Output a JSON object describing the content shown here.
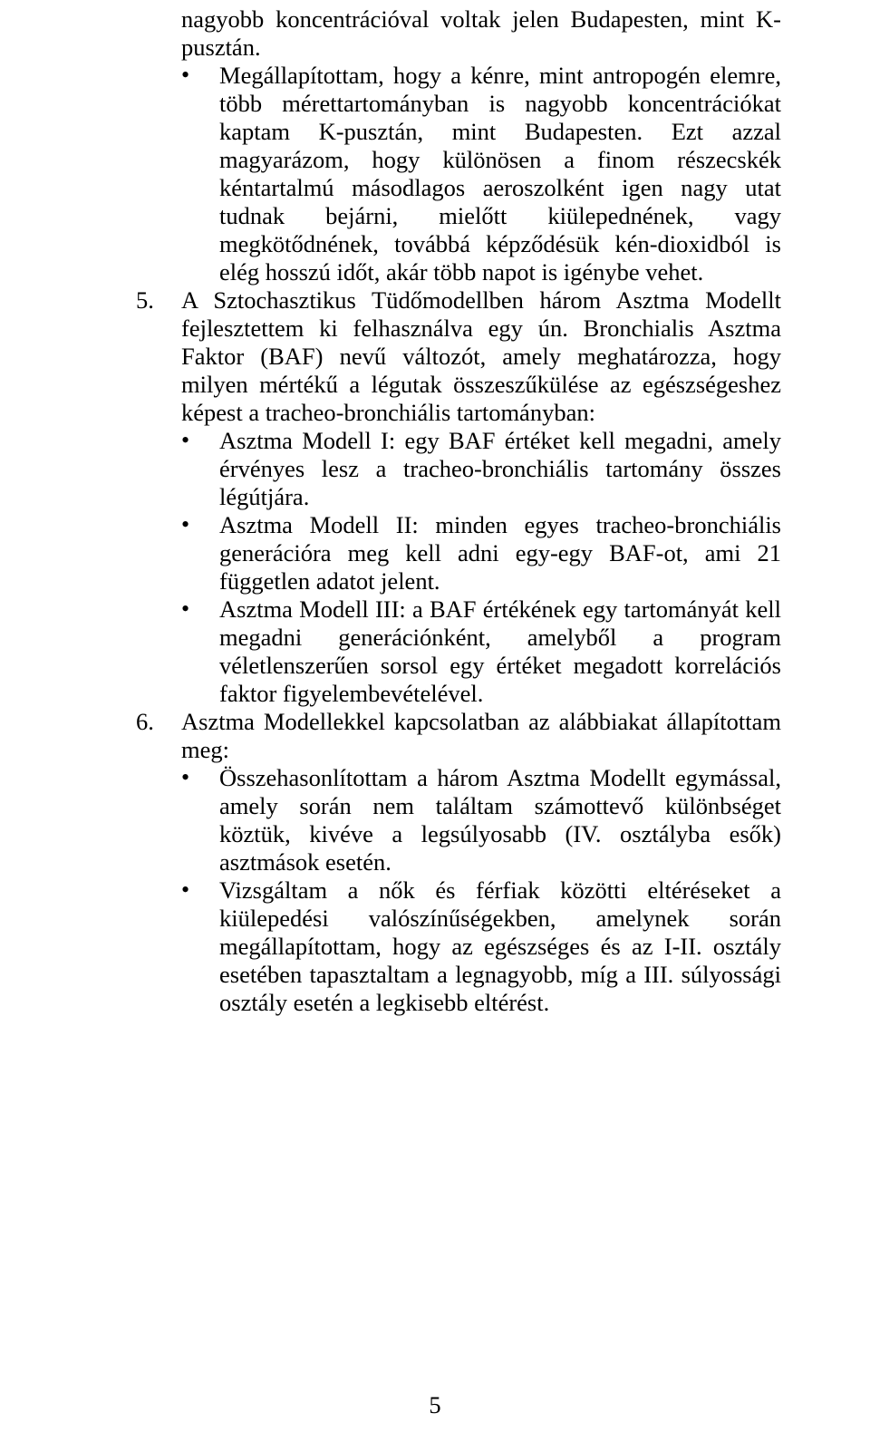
{
  "colors": {
    "text": "#000000",
    "background": "#ffffff"
  },
  "typography": {
    "font_family": "Times New Roman",
    "body_fontsize_pt": 20,
    "line_height": 1.17
  },
  "p_intro1": "nagyobb koncentrációval voltak jelen Budapesten, mint K-pusztán.",
  "b_intro2": "Megállapítottam, hogy a kénre, mint antropogén elemre, több mérettartományban is nagyobb koncentrációkat kaptam K-pusztán, mint Budapesten. Ezt azzal magyarázom, hogy különösen a finom részecskék kéntartalmú másodlagos aeroszolként igen nagy utat tudnak bejárni, mielőtt kiülepednének, vagy megkötődnének, továbbá képződésük kén-dioxidból is elég hosszú időt, akár több napot is igénybe vehet.",
  "n5": "5.",
  "p5": "A Sztochasztikus Tüdőmodellben három Asztma Modellt fejlesztettem ki felhasználva egy ún. Bronchialis Asztma Faktor (BAF) nevű változót, amely meghatározza, hogy milyen mértékű a légutak összeszűkülése az egészségeshez képest a tracheo-bronchiális tartományban:",
  "b5a": "Asztma Modell I: egy BAF értéket kell megadni, amely érvényes lesz a tracheo-bronchiális tartomány összes légútjára.",
  "b5b": "Asztma Modell II: minden egyes tracheo-bronchiális generációra meg kell adni egy-egy BAF-ot, ami 21 független adatot jelent.",
  "b5c": "Asztma Modell III: a BAF értékének egy tartományát kell megadni generációnként, amelyből a program véletlenszerűen sorsol egy értéket megadott korrelációs faktor figyelembevételével.",
  "n6": "6.",
  "p6": "Asztma Modellekkel kapcsolatban az alábbiakat állapítottam meg:",
  "b6a": "Összehasonlítottam a három Asztma Modellt egymással, amely során nem találtam számottevő különbséget köztük, kivéve a legsúlyosabb (IV. osztályba esők) asztmások esetén.",
  "b6b": "Vizsgáltam a nők és férfiak közötti eltéréseket a kiülepedési valószínűségekben, amelynek során megállapítottam, hogy az egészséges és az I-II. osztály esetében tapasztaltam a legnagyobb, míg a III. súlyossági osztály esetén a legkisebb eltérést.",
  "page_number": "5"
}
